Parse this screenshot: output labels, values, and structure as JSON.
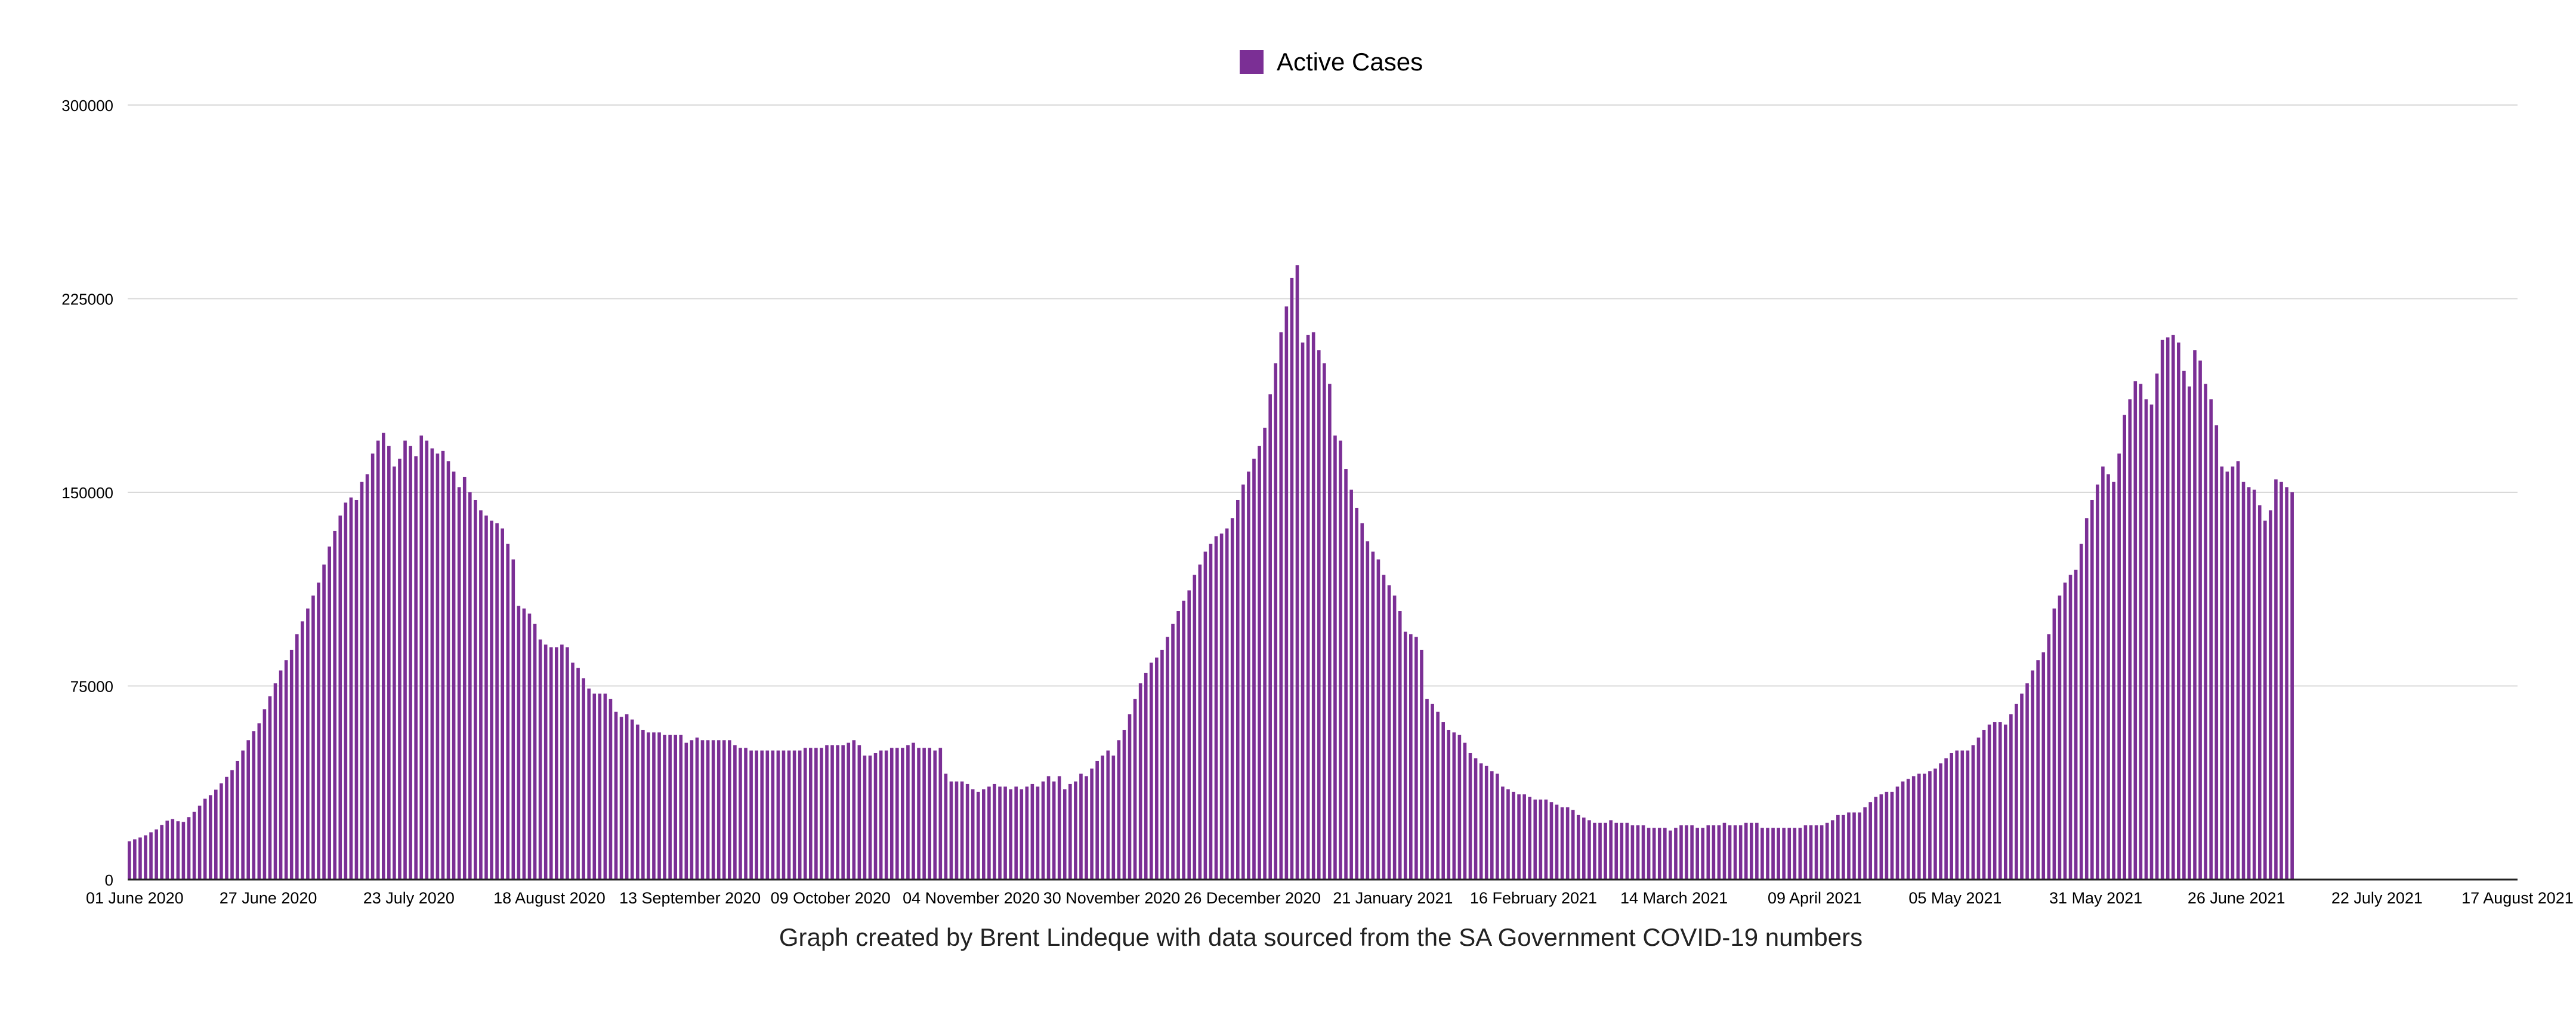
{
  "chart_data": {
    "type": "bar",
    "legend": {
      "position": "top",
      "label": "Active Cases",
      "color": "#7b2f95"
    },
    "series": [
      {
        "name": "Active Cases",
        "color": "#7b2f95",
        "values": [
          14800,
          15600,
          16300,
          17100,
          18300,
          19400,
          21100,
          22800,
          23400,
          22600,
          22300,
          24200,
          26200,
          28600,
          31300,
          32700,
          34800,
          37300,
          39800,
          42400,
          46000,
          50000,
          54000,
          57500,
          60500,
          66000,
          71000,
          76000,
          81000,
          85000,
          89000,
          95000,
          100000,
          105000,
          110000,
          115000,
          122000,
          129000,
          135000,
          141000,
          146000,
          148000,
          147000,
          154000,
          157000,
          165000,
          170000,
          173000,
          168000,
          160000,
          163000,
          170000,
          168000,
          164000,
          172000,
          170000,
          167000,
          165000,
          166000,
          162000,
          158000,
          152000,
          156000,
          150000,
          147000,
          143000,
          141000,
          139000,
          138000,
          136000,
          130000,
          124000,
          106000,
          105000,
          103000,
          99000,
          93000,
          91000,
          90000,
          90000,
          91000,
          90000,
          84000,
          82000,
          78000,
          74000,
          72000,
          72000,
          72000,
          70000,
          65000,
          63000,
          64000,
          62000,
          60000,
          58000,
          57000,
          57000,
          57000,
          56000,
          56000,
          56000,
          56000,
          53000,
          54000,
          55000,
          54000,
          54000,
          54000,
          54000,
          54000,
          54000,
          52000,
          51000,
          51000,
          50000,
          50000,
          50000,
          50000,
          50000,
          50000,
          50000,
          50000,
          50000,
          50000,
          51000,
          51000,
          51000,
          51000,
          52000,
          52000,
          52000,
          52000,
          53000,
          54000,
          52000,
          48000,
          48000,
          49000,
          50000,
          50000,
          51000,
          51000,
          51000,
          52000,
          53000,
          51000,
          51000,
          51000,
          50000,
          51000,
          41000,
          38000,
          38000,
          38000,
          37000,
          35000,
          34000,
          35000,
          36000,
          37000,
          36000,
          36000,
          35000,
          36000,
          35000,
          36000,
          37000,
          36000,
          38000,
          40000,
          38000,
          40000,
          35000,
          37000,
          38000,
          41000,
          40000,
          43000,
          46000,
          48000,
          50000,
          48000,
          54000,
          58000,
          64000,
          70000,
          76000,
          80000,
          84000,
          86000,
          89000,
          94000,
          99000,
          104000,
          108000,
          112000,
          118000,
          122000,
          127000,
          130000,
          133000,
          134000,
          136000,
          140000,
          147000,
          153000,
          158000,
          163000,
          168000,
          175000,
          188000,
          200000,
          212000,
          222000,
          233000,
          238000,
          208000,
          211000,
          212000,
          205000,
          200000,
          192000,
          172000,
          170000,
          159000,
          151000,
          144000,
          138000,
          131000,
          127000,
          124000,
          118000,
          114000,
          110000,
          104000,
          96000,
          95000,
          94000,
          89000,
          70000,
          68000,
          65000,
          61000,
          58000,
          57000,
          56000,
          53000,
          49000,
          47000,
          45000,
          44000,
          42000,
          41000,
          36000,
          35000,
          34000,
          33000,
          33000,
          32000,
          31000,
          31000,
          31000,
          30000,
          29000,
          28000,
          28000,
          27000,
          25000,
          24000,
          23000,
          22000,
          22000,
          22000,
          23000,
          22000,
          22000,
          22000,
          21000,
          21000,
          21000,
          20000,
          20000,
          20000,
          20000,
          19000,
          20000,
          21000,
          21000,
          21000,
          20000,
          20000,
          21000,
          21000,
          21000,
          22000,
          21000,
          21000,
          21000,
          22000,
          22000,
          22000,
          20000,
          20000,
          20000,
          20000,
          20000,
          20000,
          20000,
          20000,
          21000,
          21000,
          21000,
          21000,
          22000,
          23000,
          25000,
          25000,
          26000,
          26000,
          26000,
          28000,
          30000,
          32000,
          33000,
          34000,
          34000,
          36000,
          38000,
          39000,
          40000,
          41000,
          41000,
          42000,
          43000,
          45000,
          47000,
          49000,
          50000,
          50000,
          50000,
          52000,
          55000,
          58000,
          60000,
          61000,
          61000,
          60000,
          64000,
          68000,
          72000,
          76000,
          81000,
          85000,
          88000,
          95000,
          105000,
          110000,
          115000,
          118000,
          120000,
          130000,
          140000,
          147000,
          153000,
          160000,
          157000,
          154000,
          165000,
          180000,
          186000,
          193000,
          192000,
          186000,
          184000,
          196000,
          209000,
          210000,
          211000,
          208000,
          197000,
          191000,
          205000,
          201000,
          192000,
          186000,
          176000,
          160000,
          158000,
          160000,
          162000,
          154000,
          152000,
          151000,
          145000,
          139000,
          143000,
          155000,
          154000,
          152000,
          150000
        ]
      }
    ],
    "x_ticks": [
      "01 June 2020",
      "27 June 2020",
      "23 July 2020",
      "18 August 2020",
      "13 September 2020",
      "09 October 2020",
      "04 November 2020",
      "30 November 2020",
      "26 December 2020",
      "21 January 2021",
      "16 February 2021",
      "14 March 2021",
      "09 April 2021",
      "05 May 2021",
      "31 May 2021",
      "26 June 2021",
      "22 July 2021",
      "17 August 2021"
    ],
    "y_ticks": [
      "0",
      "75000",
      "150000",
      "225000",
      "300000"
    ],
    "ylim": [
      0,
      300000
    ],
    "grid": true,
    "caption": "Graph created by Brent Lindeque with data sourced from the SA Government COVID-19 numbers"
  }
}
